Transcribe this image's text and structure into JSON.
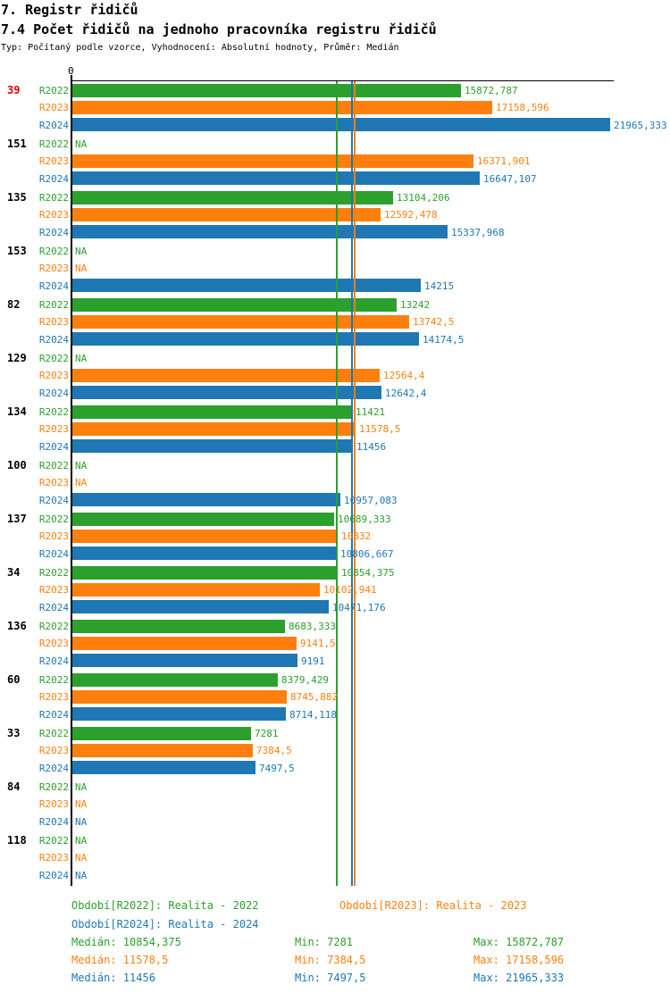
{
  "page": {
    "title": "7. Registr řidičů",
    "subtitle": "7.4 Počet řidičů na jednoho pracovníka registru řidičů",
    "meta": "Typ: Počítaný podle vzorce, Vyhodnocení: Absolutní hodnoty, Průměr: Medián",
    "zero_tick": "0"
  },
  "colors": {
    "R2022": "#2ca02c",
    "R2023": "#ff7f0e",
    "R2024": "#1f77b4",
    "highlight": "#e60000",
    "text": "#000000",
    "axis": "#000000"
  },
  "chart_data": {
    "type": "bar",
    "orientation": "horizontal",
    "title": "7.4 Počet řidičů na jednoho pracovníka registru řidičů",
    "xlim": [
      0,
      21965.333
    ],
    "na_label": "NA",
    "series_names": [
      "R2022",
      "R2023",
      "R2024"
    ],
    "categories": [
      "39",
      "151",
      "135",
      "153",
      "82",
      "129",
      "134",
      "100",
      "137",
      "34",
      "136",
      "60",
      "33",
      "84",
      "118"
    ],
    "highlighted_category": "39",
    "groups": [
      {
        "category": "39",
        "highlight": true,
        "bars": [
          {
            "series": "R2022",
            "value": 15872.787,
            "label": "15872,787"
          },
          {
            "series": "R2023",
            "value": 17158.596,
            "label": "17158,596"
          },
          {
            "series": "R2024",
            "value": 21965.333,
            "label": "21965,333"
          }
        ]
      },
      {
        "category": "151",
        "highlight": false,
        "bars": [
          {
            "series": "R2022",
            "value": null,
            "label": "NA"
          },
          {
            "series": "R2023",
            "value": 16371.901,
            "label": "16371,901"
          },
          {
            "series": "R2024",
            "value": 16647.107,
            "label": "16647,107"
          }
        ]
      },
      {
        "category": "135",
        "highlight": false,
        "bars": [
          {
            "series": "R2022",
            "value": 13104.206,
            "label": "13104,206"
          },
          {
            "series": "R2023",
            "value": 12592.478,
            "label": "12592,478"
          },
          {
            "series": "R2024",
            "value": 15337.968,
            "label": "15337,968"
          }
        ]
      },
      {
        "category": "153",
        "highlight": false,
        "bars": [
          {
            "series": "R2022",
            "value": null,
            "label": "NA"
          },
          {
            "series": "R2023",
            "value": null,
            "label": "NA"
          },
          {
            "series": "R2024",
            "value": 14215,
            "label": "14215"
          }
        ]
      },
      {
        "category": "82",
        "highlight": false,
        "bars": [
          {
            "series": "R2022",
            "value": 13242,
            "label": "13242"
          },
          {
            "series": "R2023",
            "value": 13742.5,
            "label": "13742,5"
          },
          {
            "series": "R2024",
            "value": 14174.5,
            "label": "14174,5"
          }
        ]
      },
      {
        "category": "129",
        "highlight": false,
        "bars": [
          {
            "series": "R2022",
            "value": null,
            "label": "NA"
          },
          {
            "series": "R2023",
            "value": 12564.4,
            "label": "12564,4"
          },
          {
            "series": "R2024",
            "value": 12642.4,
            "label": "12642,4"
          }
        ]
      },
      {
        "category": "134",
        "highlight": false,
        "bars": [
          {
            "series": "R2022",
            "value": 11421,
            "label": "11421"
          },
          {
            "series": "R2023",
            "value": 11578.5,
            "label": "11578,5"
          },
          {
            "series": "R2024",
            "value": 11456,
            "label": "11456"
          }
        ]
      },
      {
        "category": "100",
        "highlight": false,
        "bars": [
          {
            "series": "R2022",
            "value": null,
            "label": "NA"
          },
          {
            "series": "R2023",
            "value": null,
            "label": "NA"
          },
          {
            "series": "R2024",
            "value": 10957.083,
            "label": "10957,083"
          }
        ]
      },
      {
        "category": "137",
        "highlight": false,
        "bars": [
          {
            "series": "R2022",
            "value": 10689.333,
            "label": "10689,333"
          },
          {
            "series": "R2023",
            "value": 10832,
            "label": "10832"
          },
          {
            "series": "R2024",
            "value": 10806.667,
            "label": "10806,667"
          }
        ]
      },
      {
        "category": "34",
        "highlight": false,
        "bars": [
          {
            "series": "R2022",
            "value": 10854.375,
            "label": "10854,375"
          },
          {
            "series": "R2023",
            "value": 10102.941,
            "label": "10102,941"
          },
          {
            "series": "R2024",
            "value": 10471.176,
            "label": "10471,176"
          }
        ]
      },
      {
        "category": "136",
        "highlight": false,
        "bars": [
          {
            "series": "R2022",
            "value": 8683.333,
            "label": "8683,333"
          },
          {
            "series": "R2023",
            "value": 9141.5,
            "label": "9141,5"
          },
          {
            "series": "R2024",
            "value": 9191,
            "label": "9191"
          }
        ]
      },
      {
        "category": "60",
        "highlight": false,
        "bars": [
          {
            "series": "R2022",
            "value": 8379.429,
            "label": "8379,429"
          },
          {
            "series": "R2023",
            "value": 8745.882,
            "label": "8745,882"
          },
          {
            "series": "R2024",
            "value": 8714.118,
            "label": "8714,118"
          }
        ]
      },
      {
        "category": "33",
        "highlight": false,
        "bars": [
          {
            "series": "R2022",
            "value": 7281,
            "label": "7281"
          },
          {
            "series": "R2023",
            "value": 7384.5,
            "label": "7384,5"
          },
          {
            "series": "R2024",
            "value": 7497.5,
            "label": "7497,5"
          }
        ]
      },
      {
        "category": "84",
        "highlight": false,
        "bars": [
          {
            "series": "R2022",
            "value": null,
            "label": "NA"
          },
          {
            "series": "R2023",
            "value": null,
            "label": "NA"
          },
          {
            "series": "R2024",
            "value": null,
            "label": "NA"
          }
        ]
      },
      {
        "category": "118",
        "highlight": false,
        "bars": [
          {
            "series": "R2022",
            "value": null,
            "label": "NA"
          },
          {
            "series": "R2023",
            "value": null,
            "label": "NA"
          },
          {
            "series": "R2024",
            "value": null,
            "label": "NA"
          }
        ]
      }
    ],
    "median_lines": [
      {
        "series": "R2022",
        "value": 10854.375
      },
      {
        "series": "R2024",
        "value": 11456
      },
      {
        "series": "R2023",
        "value": 11578.5
      }
    ],
    "stats": {
      "R2022": {
        "median": 10854.375,
        "min": 7281,
        "max": 15872.787
      },
      "R2023": {
        "median": 11578.5,
        "min": 7384.5,
        "max": 17158.596
      },
      "R2024": {
        "median": 11456,
        "min": 7497.5,
        "max": 21965.333
      }
    }
  },
  "legend": {
    "periods": [
      {
        "series": "R2022",
        "label": "Období[R2022]: Realita - 2022"
      },
      {
        "series": "R2023",
        "label": "Období[R2023]: Realita - 2023"
      },
      {
        "series": "R2024",
        "label": "Období[R2024]: Realita - 2024"
      }
    ],
    "stats_rows": [
      {
        "series": "R2022",
        "median": "Medián: 10854,375",
        "min": "Min: 7281",
        "max": "Max: 15872,787"
      },
      {
        "series": "R2023",
        "median": "Medián: 11578,5",
        "min": "Min: 7384,5",
        "max": "Max: 17158,596"
      },
      {
        "series": "R2024",
        "median": "Medián: 11456",
        "min": "Min: 7497,5",
        "max": "Max: 21965,333"
      }
    ]
  }
}
